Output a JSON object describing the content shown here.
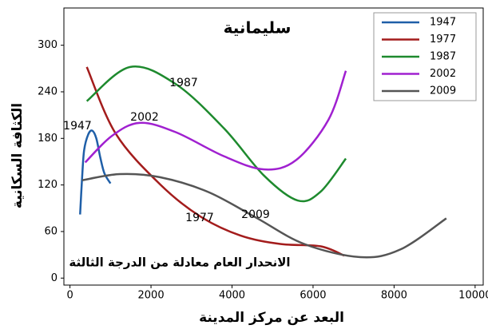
{
  "chart_data": {
    "type": "line",
    "title": "سليمانية",
    "x_label": "البعد عن مركز المدينة",
    "y_label": "الكثافة السكانية",
    "note": "الانحدار العام معادلة من الدرجة الثالثة",
    "annotations": [
      "1947",
      "2002",
      "1987",
      "1977",
      "2009"
    ],
    "xlim": [
      -150,
      10200
    ],
    "ylim": [
      -9,
      348
    ],
    "xticks": [
      0,
      2000,
      4000,
      6000,
      8000,
      10000
    ],
    "yticks": [
      0,
      60,
      120,
      180,
      240,
      300
    ],
    "legend": "upper right",
    "series": [
      {
        "name": "1947",
        "color": "#1f5fa8",
        "x": [
          250,
          300,
          350,
          450,
          550,
          650,
          750,
          850,
          1000
        ],
        "values": [
          82,
          130,
          165,
          185,
          190,
          180,
          155,
          135,
          122
        ]
      },
      {
        "name": "1977",
        "color": "#a31c1c",
        "x": [
          415,
          1130,
          2220,
          3200,
          4200,
          5190,
          6180,
          6770
        ],
        "values": [
          272,
          186,
          121,
          80,
          55,
          44,
          41,
          29
        ]
      },
      {
        "name": "1987",
        "color": "#1e8a2e",
        "x": [
          415,
          1485,
          2610,
          3800,
          4790,
          5620,
          6180,
          6810
        ],
        "values": [
          228,
          272,
          250,
          193,
          132,
          100,
          111,
          154
        ]
      },
      {
        "name": "2002",
        "color": "#a020d0",
        "x": [
          376,
          1030,
          1720,
          2610,
          3800,
          4790,
          5580,
          6380,
          6810
        ],
        "values": [
          149,
          183,
          200,
          188,
          157,
          140,
          152,
          204,
          267
        ]
      },
      {
        "name": "2009",
        "color": "#555555",
        "x": [
          300,
          1230,
          2220,
          3410,
          4590,
          5780,
          7170,
          8160,
          9290
        ],
        "values": [
          126,
          134,
          130,
          111,
          78,
          44,
          27,
          37,
          77
        ]
      }
    ]
  }
}
